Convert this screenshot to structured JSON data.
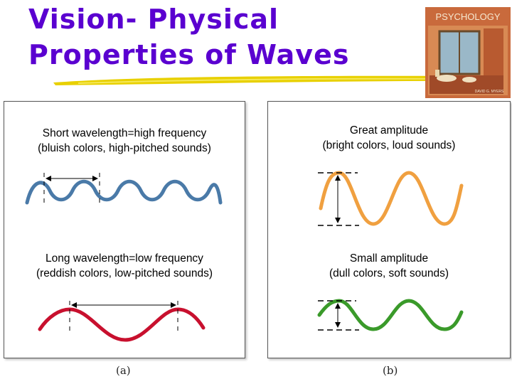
{
  "slide": {
    "title_line1": "Vision-  Physical",
    "title_line2": "Properties of Waves"
  },
  "book_cover": {
    "title": "PSYCHOLOGY",
    "author": "DAVID G. MYERS"
  },
  "panel_a": {
    "caption": "(a)",
    "top": {
      "line1": "Short wavelength=high frequency",
      "line2": "(bluish colors, high-pitched sounds)",
      "wave_color": "#4a7aa8"
    },
    "bottom": {
      "line1": "Long wavelength=low frequency",
      "line2": "(reddish colors, low-pitched sounds)",
      "wave_color": "#c8102e"
    }
  },
  "panel_b": {
    "caption": "(b)",
    "top": {
      "line1": "Great amplitude",
      "line2": "(bright colors, loud sounds)",
      "wave_color": "#f0a040"
    },
    "bottom": {
      "line1": "Small amplitude",
      "line2": "(dull colors, soft sounds)",
      "wave_color": "#3a9a2a"
    }
  }
}
